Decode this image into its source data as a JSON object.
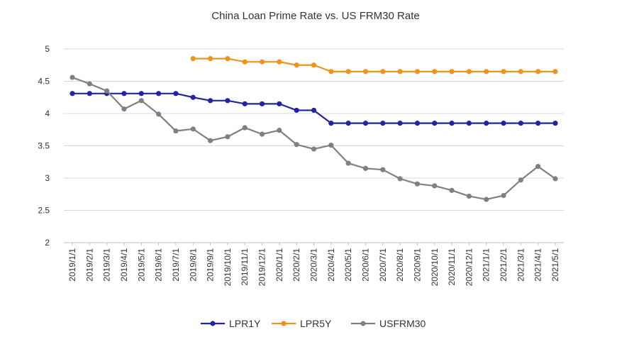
{
  "chart_data": {
    "type": "line",
    "title": "China Loan Prime Rate vs. US FRM30 Rate",
    "xlabel": "",
    "ylabel": "",
    "ylim": [
      2,
      5
    ],
    "yticks": [
      "2",
      "2.5",
      "3",
      "3.5",
      "4",
      "4.5",
      "5"
    ],
    "grid": true,
    "legend_position": "bottom",
    "x": [
      "2019/1/1",
      "2019/2/1",
      "2019/3/1",
      "2019/4/1",
      "2019/5/1",
      "2019/6/1",
      "2019/7/1",
      "2019/8/1",
      "2019/9/1",
      "2019/10/1",
      "2019/11/1",
      "2019/12/1",
      "2020/1/1",
      "2020/2/1",
      "2020/3/1",
      "2020/4/1",
      "2020/5/1",
      "2020/6/1",
      "2020/7/1",
      "2020/8/1",
      "2020/9/1",
      "2020/10/1",
      "2020/11/1",
      "2020/12/1",
      "2021/1/1",
      "2021/2/1",
      "2021/3/1",
      "2021/4/1",
      "2021/5/1"
    ],
    "series": [
      {
        "name": "LPR1Y",
        "color": "#2323a3",
        "values": [
          4.31,
          4.31,
          4.31,
          4.31,
          4.31,
          4.31,
          4.31,
          4.25,
          4.2,
          4.2,
          4.15,
          4.15,
          4.15,
          4.05,
          4.05,
          3.85,
          3.85,
          3.85,
          3.85,
          3.85,
          3.85,
          3.85,
          3.85,
          3.85,
          3.85,
          3.85,
          3.85,
          3.85,
          3.85
        ]
      },
      {
        "name": "LPR5Y",
        "color": "#f0921e",
        "values": [
          null,
          null,
          null,
          null,
          null,
          null,
          null,
          4.85,
          4.85,
          4.85,
          4.8,
          4.8,
          4.8,
          4.75,
          4.75,
          4.65,
          4.65,
          4.65,
          4.65,
          4.65,
          4.65,
          4.65,
          4.65,
          4.65,
          4.65,
          4.65,
          4.65,
          4.65,
          4.65
        ]
      },
      {
        "name": "USFRM30",
        "color": "#808080",
        "values": [
          4.56,
          4.46,
          4.35,
          4.07,
          4.2,
          3.99,
          3.73,
          3.76,
          3.58,
          3.64,
          3.78,
          3.68,
          3.74,
          3.52,
          3.45,
          3.51,
          3.23,
          3.15,
          3.13,
          2.99,
          2.91,
          2.88,
          2.81,
          2.72,
          2.67,
          2.73,
          2.97,
          3.18,
          2.99
        ]
      }
    ]
  }
}
